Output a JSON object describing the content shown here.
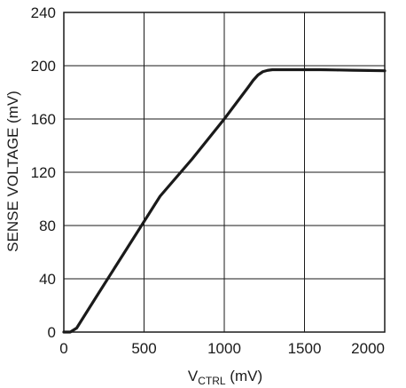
{
  "chart_data": {
    "type": "line",
    "xlabel_main": "V",
    "xlabel_sub": "CTRL",
    "xlabel_unit": " (mV)",
    "ylabel": "SENSE VOLTAGE (mV)",
    "xlim": [
      0,
      2000
    ],
    "ylim": [
      0,
      240
    ],
    "xticks": [
      0,
      500,
      1000,
      1500,
      2000
    ],
    "yticks": [
      0,
      40,
      80,
      120,
      160,
      200,
      240
    ],
    "xtick_labels": [
      "0",
      "500",
      "1000",
      "1500",
      "2000"
    ],
    "ytick_labels": [
      "0",
      "40",
      "80",
      "120",
      "160",
      "200",
      "240"
    ],
    "grid": true,
    "series": [
      {
        "x": [
          0,
          40,
          80,
          200,
          400,
          600,
          800,
          1000,
          1100,
          1150,
          1180,
          1210,
          1240,
          1270,
          1300,
          1400,
          1500,
          1600,
          1700,
          1800,
          1900,
          2000
        ],
        "y": [
          0,
          0,
          3,
          26,
          64,
          102,
          130,
          160,
          176,
          184,
          189,
          193,
          195.5,
          196.5,
          197,
          197,
          197,
          197,
          196.8,
          196.6,
          196.4,
          196.2
        ]
      }
    ],
    "colors": {
      "line": "#1a1a1a",
      "grid": "#1a1a1a",
      "frame": "#1a1a1a"
    }
  }
}
